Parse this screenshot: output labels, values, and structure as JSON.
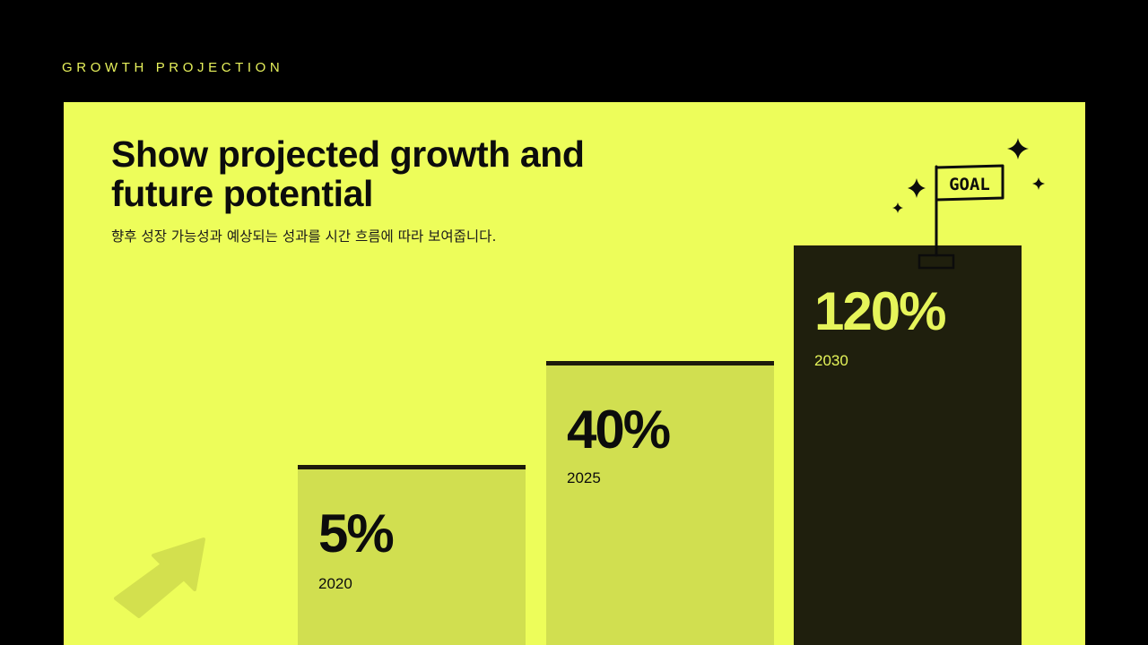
{
  "eyebrow": "GROWTH PROJECTION",
  "headline": "Show projected growth and future potential",
  "subhead": "향후 성장 가능성과 예상되는 성과를 시간 흐름에 따라 보여줍니다.",
  "goal_flag": "GOAL",
  "bars": [
    {
      "value": "5%",
      "year": "2020",
      "level": 5
    },
    {
      "value": "40%",
      "year": "2025",
      "level": 40
    },
    {
      "value": "120%",
      "year": "2030",
      "level": 120
    }
  ],
  "colors": {
    "background": "#000000",
    "panel": "#edfd5a",
    "bar_light": "#d1df50",
    "bar_dark": "#1f1f0d",
    "accent_text": "#e6f55a"
  },
  "icons": [
    "arrow-icon",
    "goal-flag-icon",
    "sparkle-icon"
  ]
}
